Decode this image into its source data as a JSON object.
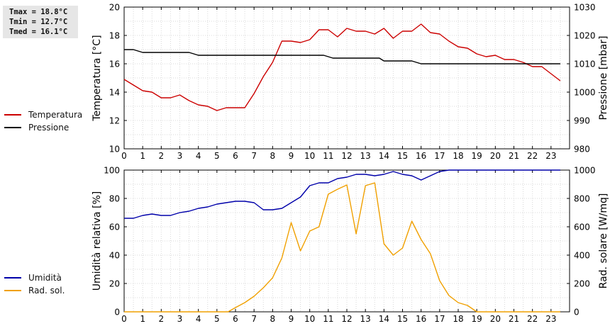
{
  "stats": {
    "tmax": "Tmax = 18.8°C",
    "tmin": "Tmin = 12.7°C",
    "tmed": "Tmed = 16.1°C"
  },
  "legend_top": [
    {
      "label": "Temperatura",
      "color": "#cc0000"
    },
    {
      "label": "Pressione",
      "color": "#000000"
    }
  ],
  "legend_bottom": [
    {
      "label": "Umidità",
      "color": "#0000aa"
    },
    {
      "label": "Rad. sol.",
      "color": "#f0a000"
    }
  ],
  "chart_data": [
    {
      "type": "line",
      "ylabel": "Temperatura [°C]",
      "ylabel_right": "Pressione [mbar]",
      "xlim": [
        0,
        24
      ],
      "ylim": [
        10,
        20
      ],
      "ylim_right": [
        980,
        1030
      ],
      "x_ticks": [
        "0",
        "1",
        "2",
        "3",
        "4",
        "5",
        "6",
        "7",
        "8",
        "9",
        "10",
        "11",
        "12",
        "13",
        "14",
        "15",
        "16",
        "17",
        "18",
        "19",
        "20",
        "21",
        "22",
        "23"
      ],
      "y_ticks": [
        "10",
        "12",
        "14",
        "16",
        "18",
        "20"
      ],
      "y_ticks_right": [
        "980",
        "990",
        "1000",
        "1010",
        "1020",
        "1030"
      ],
      "grid": true,
      "series": [
        {
          "name": "Temperatura",
          "axis": "left",
          "color": "#cc0000",
          "points": [
            [
              0,
              14.9
            ],
            [
              0.5,
              14.5
            ],
            [
              1,
              14.1
            ],
            [
              1.5,
              14.0
            ],
            [
              2,
              13.6
            ],
            [
              2.5,
              13.6
            ],
            [
              3,
              13.8
            ],
            [
              3.5,
              13.4
            ],
            [
              4,
              13.1
            ],
            [
              4.5,
              13.0
            ],
            [
              5,
              12.7
            ],
            [
              5.5,
              12.9
            ],
            [
              6,
              12.9
            ],
            [
              6.5,
              12.9
            ],
            [
              7,
              13.9
            ],
            [
              7.5,
              15.1
            ],
            [
              8,
              16.1
            ],
            [
              8.5,
              17.6
            ],
            [
              9,
              17.6
            ],
            [
              9.5,
              17.5
            ],
            [
              10,
              17.7
            ],
            [
              10.5,
              18.4
            ],
            [
              11,
              18.4
            ],
            [
              11.5,
              17.9
            ],
            [
              12,
              18.5
            ],
            [
              12.5,
              18.3
            ],
            [
              13,
              18.3
            ],
            [
              13.5,
              18.1
            ],
            [
              14,
              18.5
            ],
            [
              14.5,
              17.8
            ],
            [
              15,
              18.3
            ],
            [
              15.5,
              18.3
            ],
            [
              16,
              18.8
            ],
            [
              16.5,
              18.2
            ],
            [
              17,
              18.1
            ],
            [
              17.5,
              17.6
            ],
            [
              18,
              17.2
            ],
            [
              18.5,
              17.1
            ],
            [
              19,
              16.7
            ],
            [
              19.5,
              16.5
            ],
            [
              20,
              16.6
            ],
            [
              20.5,
              16.3
            ],
            [
              21,
              16.3
            ],
            [
              21.5,
              16.1
            ],
            [
              22,
              15.8
            ],
            [
              22.5,
              15.8
            ],
            [
              23,
              15.3
            ],
            [
              23.5,
              14.8
            ]
          ]
        },
        {
          "name": "Pressione",
          "axis": "right",
          "color": "#000000",
          "points": [
            [
              0,
              1015
            ],
            [
              0.5,
              1015
            ],
            [
              1,
              1014
            ],
            [
              3.5,
              1014
            ],
            [
              4,
              1013
            ],
            [
              10.75,
              1013
            ],
            [
              11.25,
              1012
            ],
            [
              13.75,
              1012
            ],
            [
              14,
              1011
            ],
            [
              15.5,
              1011
            ],
            [
              16,
              1010
            ],
            [
              23.5,
              1010
            ]
          ]
        }
      ]
    },
    {
      "type": "line",
      "ylabel": "Umidità relativa [%]",
      "ylabel_right": "Rad. solare [W/mq]",
      "xlim": [
        0,
        24
      ],
      "ylim": [
        0,
        100
      ],
      "ylim_right": [
        0,
        1000
      ],
      "x_ticks": [
        "0",
        "1",
        "2",
        "3",
        "4",
        "5",
        "6",
        "7",
        "8",
        "9",
        "10",
        "11",
        "12",
        "13",
        "14",
        "15",
        "16",
        "17",
        "18",
        "19",
        "20",
        "21",
        "22",
        "23"
      ],
      "y_ticks": [
        "0",
        "20",
        "40",
        "60",
        "80",
        "100"
      ],
      "y_ticks_right": [
        "0",
        "200",
        "400",
        "600",
        "800",
        "1000"
      ],
      "grid": true,
      "series": [
        {
          "name": "Umidità",
          "axis": "left",
          "color": "#0000aa",
          "points": [
            [
              0,
              66
            ],
            [
              0.5,
              66
            ],
            [
              1,
              68
            ],
            [
              1.5,
              69
            ],
            [
              2,
              68
            ],
            [
              2.5,
              68
            ],
            [
              3,
              70
            ],
            [
              3.5,
              71
            ],
            [
              4,
              73
            ],
            [
              4.5,
              74
            ],
            [
              5,
              76
            ],
            [
              5.5,
              77
            ],
            [
              6,
              78
            ],
            [
              6.5,
              78
            ],
            [
              7,
              77
            ],
            [
              7.5,
              72
            ],
            [
              8,
              72
            ],
            [
              8.5,
              73
            ],
            [
              9,
              77
            ],
            [
              9.5,
              81
            ],
            [
              10,
              89
            ],
            [
              10.5,
              91
            ],
            [
              11,
              91
            ],
            [
              11.5,
              94
            ],
            [
              12,
              95
            ],
            [
              12.5,
              97
            ],
            [
              13,
              97
            ],
            [
              13.5,
              96
            ],
            [
              14,
              97
            ],
            [
              14.5,
              99
            ],
            [
              15,
              97
            ],
            [
              15.5,
              96
            ],
            [
              16,
              93
            ],
            [
              16.5,
              96
            ],
            [
              17,
              99
            ],
            [
              17.5,
              100
            ],
            [
              23.5,
              100
            ]
          ]
        },
        {
          "name": "Rad. sol.",
          "axis": "right",
          "color": "#f0a000",
          "points": [
            [
              0,
              0
            ],
            [
              5.6,
              0
            ],
            [
              6,
              30
            ],
            [
              6.5,
              65
            ],
            [
              7,
              110
            ],
            [
              7.5,
              170
            ],
            [
              8,
              240
            ],
            [
              8.5,
              380
            ],
            [
              9,
              630
            ],
            [
              9.5,
              430
            ],
            [
              10,
              570
            ],
            [
              10.5,
              600
            ],
            [
              11,
              830
            ],
            [
              11.5,
              865
            ],
            [
              12,
              895
            ],
            [
              12.5,
              550
            ],
            [
              13,
              890
            ],
            [
              13.5,
              910
            ],
            [
              14,
              480
            ],
            [
              14.5,
              400
            ],
            [
              15,
              450
            ],
            [
              15.5,
              640
            ],
            [
              16,
              510
            ],
            [
              16.5,
              410
            ],
            [
              17,
              220
            ],
            [
              17.5,
              115
            ],
            [
              18,
              65
            ],
            [
              18.5,
              45
            ],
            [
              19,
              0
            ],
            [
              23.5,
              0
            ]
          ]
        }
      ]
    }
  ]
}
